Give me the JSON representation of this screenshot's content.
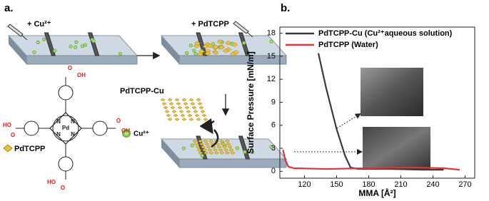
{
  "panel_a": {
    "label": "a.",
    "step1": "+ Cu²⁺",
    "step2": "+ PdTCPP",
    "product": "PdTCPP-Cu",
    "molecule_name": "PdTCPP",
    "ion": "Cu²⁺",
    "atoms": [
      "O",
      "OH",
      "HO",
      "O",
      "O",
      "OH",
      "HO",
      "O",
      "N",
      "N",
      "N",
      "N",
      "Pd"
    ]
  },
  "chart_data": {
    "type": "line",
    "panel_label": "b.",
    "x_label": "MMA [Å²]",
    "y_label": "Surface Pressure [mN/m]",
    "xlim": [
      97,
      279
    ],
    "xticks": [
      120,
      150,
      180,
      210,
      240,
      270
    ],
    "ylim": [
      -0.9,
      18.8
    ],
    "yticks": [
      0,
      3,
      6,
      9,
      12,
      15,
      18
    ],
    "legend": "upper left",
    "series": [
      {
        "name": "PdTCPP-Cu (Cu²⁺aqueous solution)",
        "color": "#3a3a3a",
        "x": [
          133,
          140,
          150,
          158,
          163,
          170,
          200,
          230,
          250
        ],
        "values": [
          15.4,
          11,
          5.5,
          2,
          0.5,
          0.3,
          0.3,
          0.2,
          0.2
        ]
      },
      {
        "name": "PdTCPP (Water)",
        "color": "#e0343a",
        "x": [
          100,
          102,
          105,
          110,
          140,
          180,
          220,
          250,
          265
        ],
        "values": [
          2.8,
          1.5,
          0.6,
          0.4,
          0.3,
          0.4,
          0.5,
          0.4,
          0.2
        ]
      }
    ]
  }
}
